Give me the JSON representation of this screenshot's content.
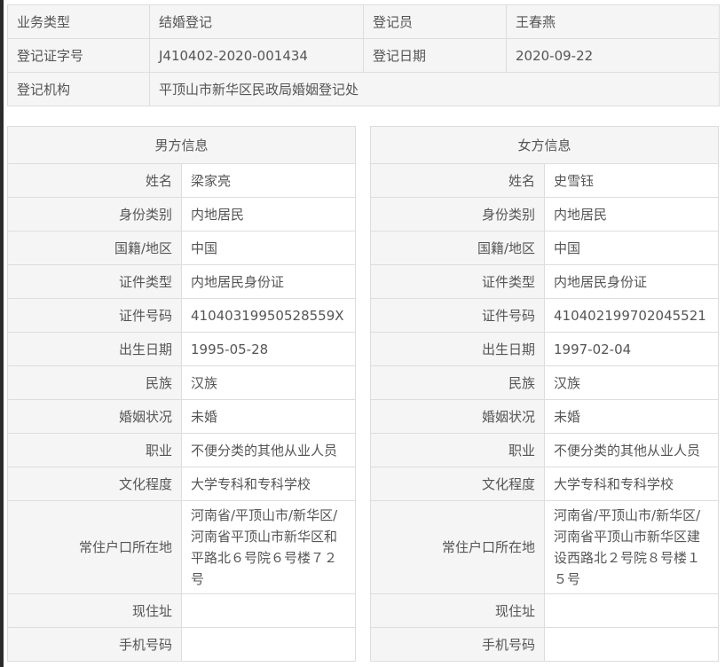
{
  "summary": {
    "business_type_label": "业务类型",
    "business_type": "结婚登记",
    "registrar_label": "登记员",
    "registrar": "王春燕",
    "cert_no_label": "登记证字号",
    "cert_no": "J410402-2020-001434",
    "reg_date_label": "登记日期",
    "reg_date": "2020-09-22",
    "office_label": "登记机构",
    "office": "平顶山市新华区民政局婚姻登记处"
  },
  "labels": [
    "姓名",
    "身份类别",
    "国籍/地区",
    "证件类型",
    "证件号码",
    "出生日期",
    "民族",
    "婚姻状况",
    "职业",
    "文化程度",
    "常住户口所在地",
    "现住址",
    "手机号码"
  ],
  "male": {
    "title": "男方信息",
    "values": [
      "梁家亮",
      "内地居民",
      "中国",
      "内地居民身份证",
      "41040319950528559X",
      "1995-05-28",
      "汉族",
      "未婚",
      "不便分类的其他从业人员",
      "大学专科和专科学校",
      "河南省/平顶山市/新华区/河南省平顶山市新华区和平路北６号院６号楼７２号",
      "",
      ""
    ]
  },
  "female": {
    "title": "女方信息",
    "values": [
      "史雪钰",
      "内地居民",
      "中国",
      "内地居民身份证",
      "410402199702045521",
      "1997-02-04",
      "汉族",
      "未婚",
      "不便分类的其他从业人员",
      "大学专科和专科学校",
      "河南省/平顶山市/新华区/河南省平顶山市新华区建设西路北２号院８号楼１５号",
      "",
      ""
    ]
  }
}
